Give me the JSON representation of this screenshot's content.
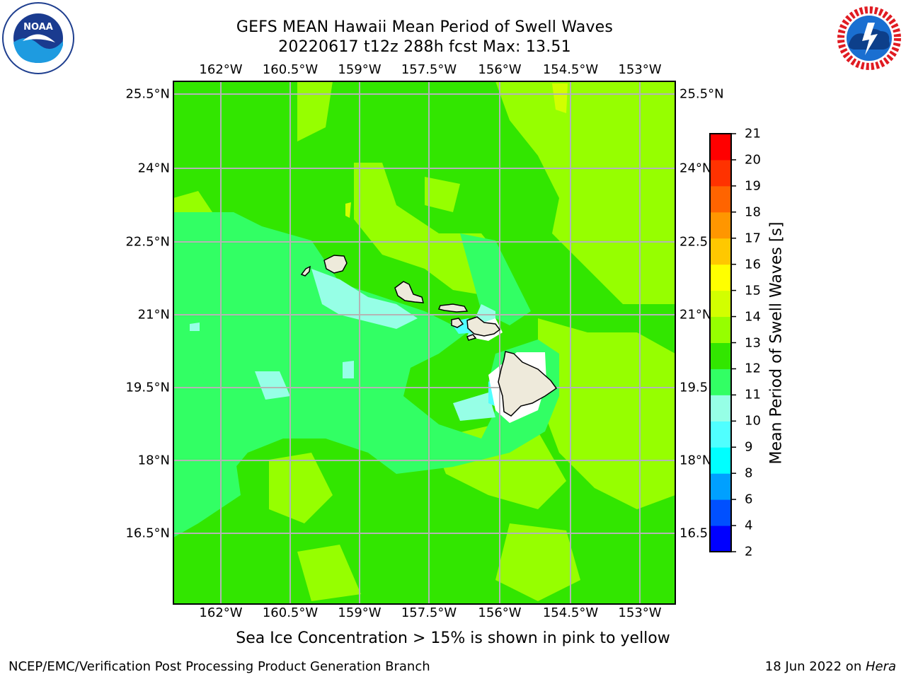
{
  "title": {
    "line1": "GEFS MEAN Hawaii Mean Period of Swell Waves",
    "line2": "20220617 t12z 288h fcst   Max: 13.51"
  },
  "logos": {
    "left": "noaa-logo",
    "right": "national-weather-service-logo"
  },
  "map": {
    "lon_labels": [
      "162°W",
      "160.5°W",
      "159°W",
      "157.5°W",
      "156°W",
      "154.5°W",
      "153°W"
    ],
    "lat_labels": [
      "25.5°N",
      "24°N",
      "22.5°N",
      "21°N",
      "19.5°N",
      "18°N",
      "16.5°N"
    ],
    "right_lat_labels": [
      "25.5°N",
      "24°N",
      "22.5",
      "21°N",
      "19.5",
      "18°N",
      "16.5"
    ],
    "lon_range": [
      -163,
      -152.2
    ],
    "lat_range": [
      15,
      25.7
    ],
    "land_color": "#eeeadb",
    "grid_color": "#b4b4b4",
    "islands": [
      "Niihau",
      "Kauai",
      "Oahu",
      "Molokai",
      "Lanai",
      "Maui",
      "Kahoolawe",
      "Hawaii"
    ]
  },
  "colorbar": {
    "label": "Mean Period of Swell Waves [s]",
    "ticks": [
      "2",
      "4",
      "6",
      "8",
      "9",
      "10",
      "11",
      "12",
      "13",
      "14",
      "15",
      "16",
      "17",
      "18",
      "19",
      "20",
      "21"
    ],
    "colors": [
      "#0000ff",
      "#0050ff",
      "#00a0ff",
      "#00ffff",
      "#50ffff",
      "#96ffe6",
      "#32ff64",
      "#32e600",
      "#96ff00",
      "#d2ff00",
      "#ffff00",
      "#ffc800",
      "#ff9600",
      "#ff6400",
      "#ff3200",
      "#ff0000"
    ]
  },
  "caption": "Sea Ice Concentration > 15% is shown in pink to yellow",
  "credit": {
    "left": "NCEP/EMC/Verification Post Processing Product Generation Branch",
    "right_prefix": "18 Jun 2022 on ",
    "right_machine": "Hera"
  }
}
